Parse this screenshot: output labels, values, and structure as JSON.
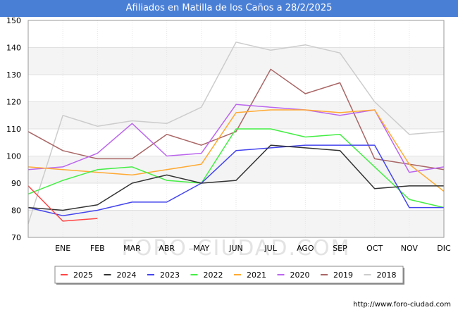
{
  "title": "Afiliados en Matilla de los Caños a 28/2/2025",
  "source": "http://www.foro-ciudad.com",
  "watermark": "FORO-CIUDAD.COM",
  "chart_data": {
    "type": "line",
    "categories": [
      "",
      "ENE",
      "FEB",
      "MAR",
      "ABR",
      "MAY",
      "JUN",
      "JUL",
      "AGO",
      "SEP",
      "OCT",
      "NOV",
      "DIC"
    ],
    "ylim": [
      70,
      150
    ],
    "yticks": [
      "70",
      "80",
      "90",
      "100",
      "110",
      "120",
      "130",
      "140",
      "150"
    ],
    "grid": true,
    "legend_position": "bottom",
    "series": [
      {
        "name": "2025",
        "color": "#ff4444",
        "values": [
          89,
          76,
          77,
          null,
          null,
          null,
          null,
          null,
          null,
          null,
          null,
          null,
          null
        ]
      },
      {
        "name": "2024",
        "color": "#333333",
        "values": [
          81,
          80,
          82,
          90,
          93,
          90,
          91,
          104,
          103,
          102,
          88,
          89,
          89
        ]
      },
      {
        "name": "2023",
        "color": "#4444ee",
        "values": [
          81,
          78,
          80,
          83,
          83,
          90,
          102,
          103,
          104,
          104,
          104,
          81,
          81
        ]
      },
      {
        "name": "2022",
        "color": "#44ee44",
        "values": [
          86,
          91,
          95,
          96,
          91,
          90,
          110,
          110,
          107,
          108,
          96,
          84,
          81
        ]
      },
      {
        "name": "2021",
        "color": "#ffaa33",
        "values": [
          96,
          95,
          94,
          93,
          95,
          97,
          116,
          117,
          117,
          116,
          117,
          97,
          87
        ]
      },
      {
        "name": "2020",
        "color": "#bb66ee",
        "values": [
          95,
          96,
          101,
          112,
          100,
          101,
          119,
          118,
          117,
          115,
          117,
          94,
          96
        ]
      },
      {
        "name": "2019",
        "color": "#aa6666",
        "values": [
          109,
          102,
          99,
          99,
          108,
          104,
          109,
          132,
          123,
          127,
          99,
          97,
          95
        ]
      },
      {
        "name": "2018",
        "color": "#cccccc",
        "values": [
          75,
          115,
          111,
          113,
          112,
          118,
          142,
          139,
          141,
          138,
          120,
          108,
          109
        ]
      }
    ]
  }
}
